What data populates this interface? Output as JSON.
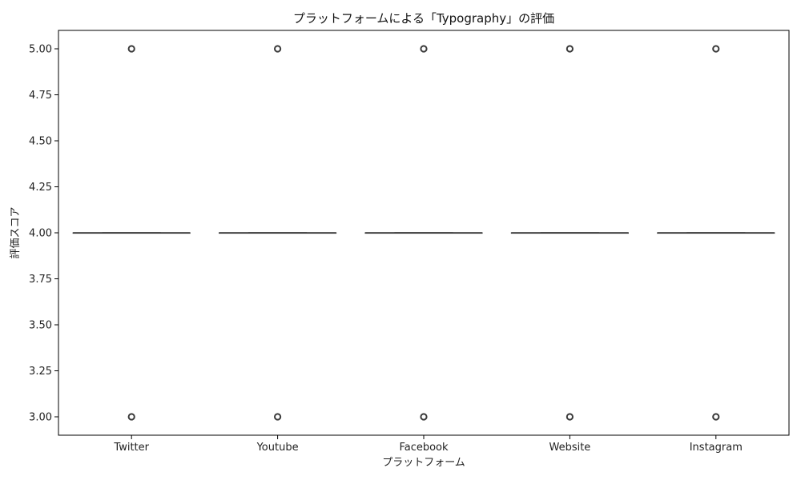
{
  "chart_data": {
    "type": "box",
    "title": "プラットフォームによる「Typography」の評価",
    "xlabel": "プラットフォーム",
    "ylabel": "評価スコア",
    "ylim": [
      2.9,
      5.1
    ],
    "yticks": [
      3.0,
      3.25,
      3.5,
      3.75,
      4.0,
      4.25,
      4.5,
      4.75,
      5.0
    ],
    "categories": [
      "Twitter",
      "Youtube",
      "Facebook",
      "Website",
      "Instagram"
    ],
    "boxes": [
      {
        "category": "Twitter",
        "q1": 4.0,
        "median": 4.0,
        "q3": 4.0,
        "whisker_low": 4.0,
        "whisker_high": 4.0,
        "outliers": [
          5.0,
          3.0
        ]
      },
      {
        "category": "Youtube",
        "q1": 4.0,
        "median": 4.0,
        "q3": 4.0,
        "whisker_low": 4.0,
        "whisker_high": 4.0,
        "outliers": [
          5.0,
          3.0
        ]
      },
      {
        "category": "Facebook",
        "q1": 4.0,
        "median": 4.0,
        "q3": 4.0,
        "whisker_low": 4.0,
        "whisker_high": 4.0,
        "outliers": [
          5.0,
          3.0
        ]
      },
      {
        "category": "Website",
        "q1": 4.0,
        "median": 4.0,
        "q3": 4.0,
        "whisker_low": 4.0,
        "whisker_high": 4.0,
        "outliers": [
          5.0,
          3.0
        ]
      },
      {
        "category": "Instagram",
        "q1": 4.0,
        "median": 4.0,
        "q3": 4.0,
        "whisker_low": 4.0,
        "whisker_high": 4.0,
        "outliers": [
          5.0,
          3.0
        ]
      }
    ],
    "grid": false,
    "colors": {
      "box": "#3a3a3a",
      "outlier": "#3a3a3a",
      "axis": "#000000"
    }
  }
}
